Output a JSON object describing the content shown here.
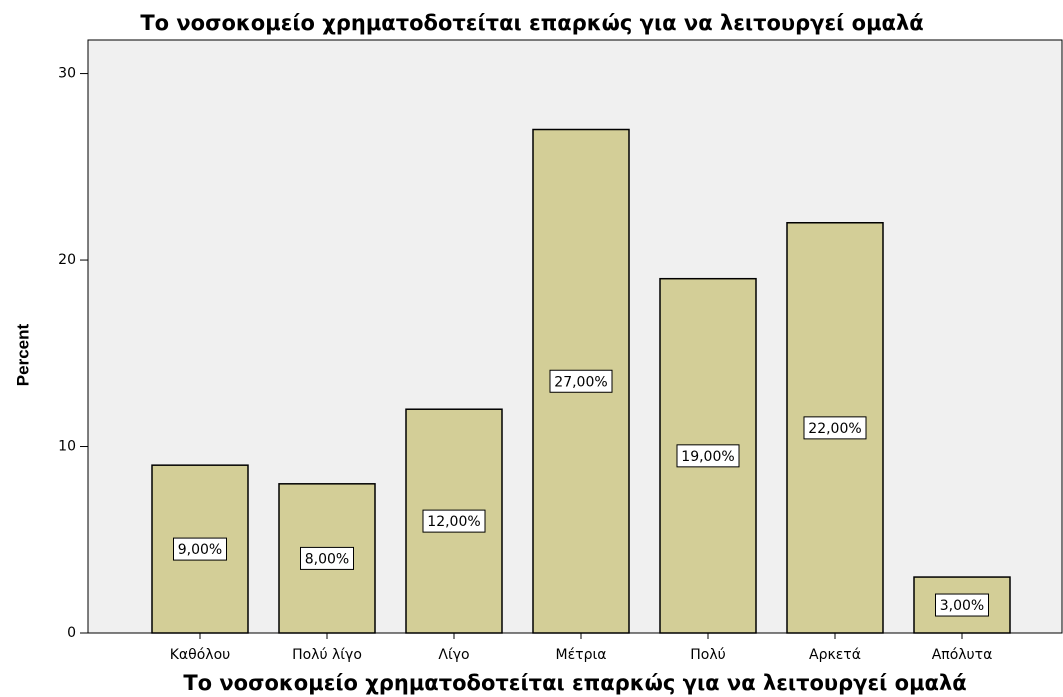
{
  "chart_data": {
    "type": "bar",
    "title": "Το νοσοκομείο χρηματοδοτείται επαρκώς για να λειτουργεί ομαλά",
    "x_label": "Το νοσοκομείο χρηματοδοτείται επαρκώς για να λειτουργεί ομαλά",
    "y_label": "Percent",
    "categories": [
      "Καθόλου",
      "Πολύ λίγο",
      "Λίγο",
      "Μέτρια",
      "Πολύ",
      "Αρκετά",
      "Απόλυτα"
    ],
    "values": [
      9,
      8,
      12,
      27,
      19,
      22,
      3
    ],
    "value_labels": [
      "9,00%",
      "8,00%",
      "12,00%",
      "27,00%",
      "19,00%",
      "22,00%",
      "3,00%"
    ],
    "color": "#d3ce97",
    "ylim": [
      0,
      31.8
    ],
    "yticks": [
      0,
      10,
      20,
      30
    ],
    "grid": false
  }
}
